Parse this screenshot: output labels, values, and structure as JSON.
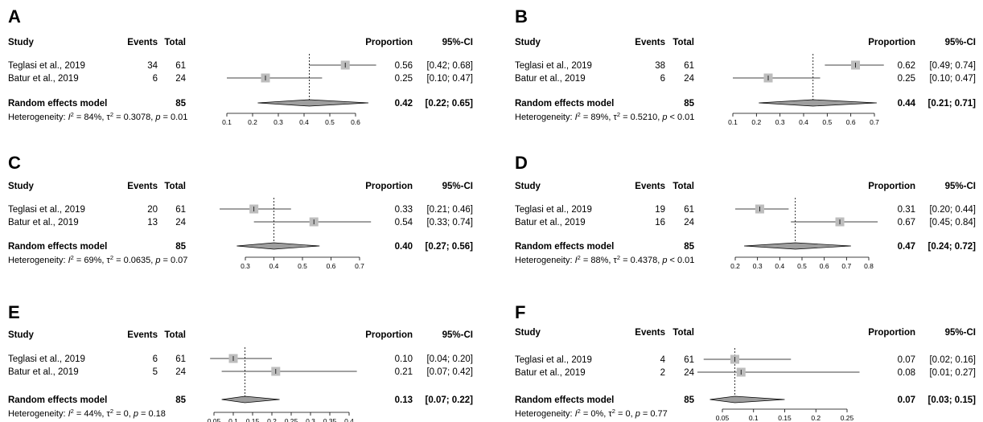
{
  "chart_data": [
    {
      "type": "forest",
      "panel_label": "A",
      "headers": {
        "study": "Study",
        "events": "Events",
        "total": "Total",
        "proportion": "Proportion",
        "ci": "95%-CI"
      },
      "studies": [
        {
          "name": "Teglasi et al., 2019",
          "events": "34",
          "total": "61",
          "proportion": 0.56,
          "lower": 0.42,
          "upper": 0.68,
          "proportion_text": "0.56",
          "ci_text": "[0.42; 0.68]"
        },
        {
          "name": "Batur et al., 2019",
          "events": "6",
          "total": "24",
          "proportion": 0.25,
          "lower": 0.1,
          "upper": 0.47,
          "proportion_text": "0.25",
          "ci_text": "[0.10; 0.47]"
        }
      ],
      "pooled": {
        "label": "Random effects model",
        "total": "85",
        "proportion": 0.42,
        "lower": 0.22,
        "upper": 0.65,
        "proportion_text": "0.42",
        "ci_text": "[0.22; 0.65]"
      },
      "heterogeneity": {
        "prefix": "Heterogeneity: ",
        "i2": "84%",
        "tau2": "0.3078",
        "p": "= 0.01"
      },
      "axis": {
        "min": 0.1,
        "max": 0.6,
        "ticks": [
          0.1,
          0.2,
          0.3,
          0.4,
          0.5,
          0.6
        ],
        "tick_labels": [
          "0.1",
          "0.2",
          "0.3",
          "0.4",
          "0.5",
          "0.6"
        ]
      }
    },
    {
      "type": "forest",
      "panel_label": "B",
      "headers": {
        "study": "Study",
        "events": "Events",
        "total": "Total",
        "proportion": "Proportion",
        "ci": "95%-CI"
      },
      "studies": [
        {
          "name": "Teglasi et al., 2019",
          "events": "38",
          "total": "61",
          "proportion": 0.62,
          "lower": 0.49,
          "upper": 0.74,
          "proportion_text": "0.62",
          "ci_text": "[0.49; 0.74]"
        },
        {
          "name": "Batur et al., 2019",
          "events": "6",
          "total": "24",
          "proportion": 0.25,
          "lower": 0.1,
          "upper": 0.47,
          "proportion_text": "0.25",
          "ci_text": "[0.10; 0.47]"
        }
      ],
      "pooled": {
        "label": "Random effects model",
        "total": "85",
        "proportion": 0.44,
        "lower": 0.21,
        "upper": 0.71,
        "proportion_text": "0.44",
        "ci_text": "[0.21; 0.71]"
      },
      "heterogeneity": {
        "prefix": "Heterogeneity: ",
        "i2": "89%",
        "tau2": "0.5210",
        "p": "< 0.01"
      },
      "axis": {
        "min": 0.1,
        "max": 0.7,
        "ticks": [
          0.1,
          0.2,
          0.3,
          0.4,
          0.5,
          0.6,
          0.7
        ],
        "tick_labels": [
          "0.1",
          "0.2",
          "0.3",
          "0.4",
          "0.5",
          "0.6",
          "0.7"
        ]
      }
    },
    {
      "type": "forest",
      "panel_label": "C",
      "headers": {
        "study": "Study",
        "events": "Events",
        "total": "Total",
        "proportion": "Proportion",
        "ci": "95%-CI"
      },
      "studies": [
        {
          "name": "Teglasi et al., 2019",
          "events": "20",
          "total": "61",
          "proportion": 0.33,
          "lower": 0.21,
          "upper": 0.46,
          "proportion_text": "0.33",
          "ci_text": "[0.21; 0.46]"
        },
        {
          "name": "Batur et al., 2019",
          "events": "13",
          "total": "24",
          "proportion": 0.54,
          "lower": 0.33,
          "upper": 0.74,
          "proportion_text": "0.54",
          "ci_text": "[0.33; 0.74]"
        }
      ],
      "pooled": {
        "label": "Random effects model",
        "total": "85",
        "proportion": 0.4,
        "lower": 0.27,
        "upper": 0.56,
        "proportion_text": "0.40",
        "ci_text": "[0.27; 0.56]"
      },
      "heterogeneity": {
        "prefix": "Heterogeneity: ",
        "i2": "69%",
        "tau2": "0.0635",
        "p": "= 0.07"
      },
      "axis": {
        "min": 0.3,
        "max": 0.7,
        "ticks": [
          0.3,
          0.4,
          0.5,
          0.6,
          0.7
        ],
        "tick_labels": [
          "0.3",
          "0.4",
          "0.5",
          "0.6",
          "0.7"
        ]
      }
    },
    {
      "type": "forest",
      "panel_label": "D",
      "headers": {
        "study": "Study",
        "events": "Events",
        "total": "Total",
        "proportion": "Proportion",
        "ci": "95%-CI"
      },
      "studies": [
        {
          "name": "Teglasi et al., 2019",
          "events": "19",
          "total": "61",
          "proportion": 0.31,
          "lower": 0.2,
          "upper": 0.44,
          "proportion_text": "0.31",
          "ci_text": "[0.20; 0.44]"
        },
        {
          "name": "Batur et al., 2019",
          "events": "16",
          "total": "24",
          "proportion": 0.67,
          "lower": 0.45,
          "upper": 0.84,
          "proportion_text": "0.67",
          "ci_text": "[0.45; 0.84]"
        }
      ],
      "pooled": {
        "label": "Random effects model",
        "total": "85",
        "proportion": 0.47,
        "lower": 0.24,
        "upper": 0.72,
        "proportion_text": "0.47",
        "ci_text": "[0.24; 0.72]"
      },
      "heterogeneity": {
        "prefix": "Heterogeneity: ",
        "i2": "88%",
        "tau2": "0.4378",
        "p": "< 0.01"
      },
      "axis": {
        "min": 0.2,
        "max": 0.8,
        "ticks": [
          0.2,
          0.3,
          0.4,
          0.5,
          0.6,
          0.7,
          0.8
        ],
        "tick_labels": [
          "0.2",
          "0.3",
          "0.4",
          "0.5",
          "0.6",
          "0.7",
          "0.8"
        ]
      }
    },
    {
      "type": "forest",
      "panel_label": "E",
      "headers": {
        "study": "Study",
        "events": "Events",
        "total": "Total",
        "proportion": "Proportion",
        "ci": "95%-CI"
      },
      "studies": [
        {
          "name": "Teglasi et al., 2019",
          "events": "6",
          "total": "61",
          "proportion": 0.1,
          "lower": 0.04,
          "upper": 0.2,
          "proportion_text": "0.10",
          "ci_text": "[0.04; 0.20]"
        },
        {
          "name": "Batur et al., 2019",
          "events": "5",
          "total": "24",
          "proportion": 0.21,
          "lower": 0.07,
          "upper": 0.42,
          "proportion_text": "0.21",
          "ci_text": "[0.07; 0.42]"
        }
      ],
      "pooled": {
        "label": "Random effects model",
        "total": "85",
        "proportion": 0.13,
        "lower": 0.07,
        "upper": 0.22,
        "proportion_text": "0.13",
        "ci_text": "[0.07; 0.22]"
      },
      "heterogeneity": {
        "prefix": "Heterogeneity: ",
        "i2": "44%",
        "tau2": "0",
        "p": "= 0.18"
      },
      "axis": {
        "min": 0.05,
        "max": 0.4,
        "ticks": [
          0.05,
          0.1,
          0.15,
          0.2,
          0.25,
          0.3,
          0.35,
          0.4
        ],
        "tick_labels": [
          "0.05",
          "0.1",
          "0.15",
          "0.2",
          "0.25",
          "0.3",
          "0.35",
          "0.4"
        ]
      }
    },
    {
      "type": "forest",
      "panel_label": "F",
      "headers": {
        "study": "Study",
        "events": "Events",
        "total": "Total",
        "proportion": "Proportion",
        "ci": "95%-CI"
      },
      "studies": [
        {
          "name": "Teglasi et al., 2019",
          "events": "4",
          "total": "61",
          "proportion": 0.07,
          "lower": 0.02,
          "upper": 0.16,
          "proportion_text": "0.07",
          "ci_text": "[0.02; 0.16]"
        },
        {
          "name": "Batur et al., 2019",
          "events": "2",
          "total": "24",
          "proportion": 0.08,
          "lower": 0.01,
          "upper": 0.27,
          "proportion_text": "0.08",
          "ci_text": "[0.01; 0.27]"
        }
      ],
      "pooled": {
        "label": "Random effects model",
        "total": "85",
        "proportion": 0.07,
        "lower": 0.03,
        "upper": 0.15,
        "proportion_text": "0.07",
        "ci_text": "[0.03; 0.15]"
      },
      "heterogeneity": {
        "prefix": "Heterogeneity: ",
        "i2": "0%",
        "tau2": "0",
        "p": "= 0.77"
      },
      "axis": {
        "min": 0.05,
        "max": 0.25,
        "ticks": [
          0.05,
          0.1,
          0.15,
          0.2,
          0.25
        ],
        "tick_labels": [
          "0.05",
          "0.1",
          "0.15",
          "0.2",
          "0.25"
        ]
      }
    }
  ]
}
